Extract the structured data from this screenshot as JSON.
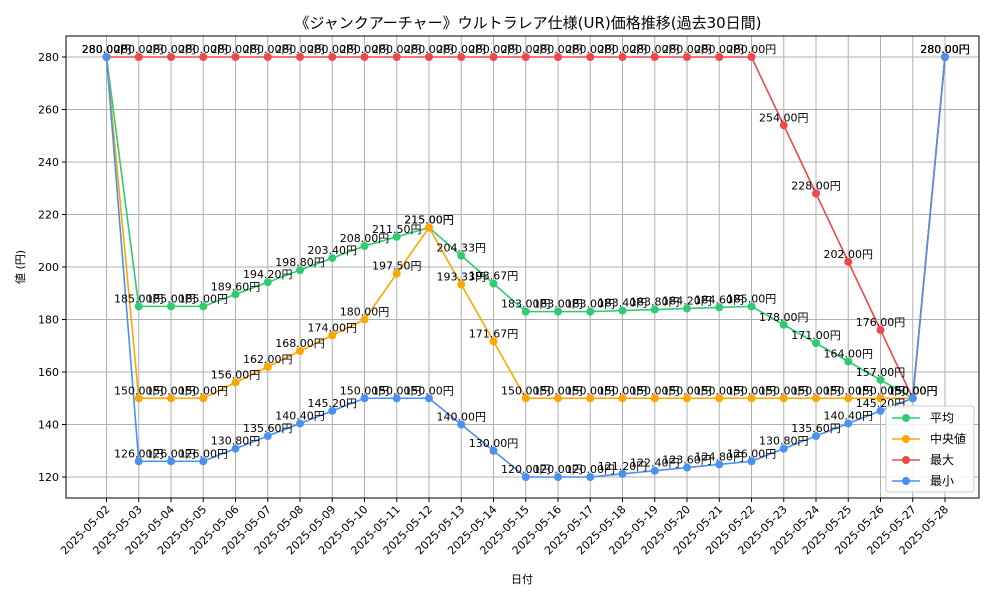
{
  "chart_data": {
    "type": "line",
    "title": "《ジャンクアーチャー》ウルトラレア仕様(UR)価格推移(過去30日間)",
    "xlabel": "日付",
    "ylabel": "値 (円)",
    "ylim": [
      112,
      288
    ],
    "yticks": [
      120,
      140,
      160,
      180,
      200,
      220,
      240,
      260,
      280
    ],
    "grid": true,
    "legend_position": "lower-right",
    "value_suffix": "円",
    "categories": [
      "2025-05-02",
      "2025-05-03",
      "2025-05-04",
      "2025-05-05",
      "2025-05-06",
      "2025-05-07",
      "2025-05-08",
      "2025-05-09",
      "2025-05-10",
      "2025-05-11",
      "2025-05-12",
      "2025-05-13",
      "2025-05-14",
      "2025-05-15",
      "2025-05-16",
      "2025-05-17",
      "2025-05-18",
      "2025-05-19",
      "2025-05-20",
      "2025-05-21",
      "2025-05-22",
      "2025-05-23",
      "2025-05-24",
      "2025-05-25",
      "2025-05-26",
      "2025-05-27",
      "2025-05-28"
    ],
    "series": [
      {
        "name": "平均",
        "color": "#2ecc71",
        "values": [
          280,
          185,
          185,
          185,
          189.6,
          194.2,
          198.8,
          203.4,
          208,
          211.5,
          215,
          204.33,
          193.67,
          183,
          183,
          183,
          183.4,
          183.8,
          184.2,
          184.6,
          185,
          178,
          171,
          164,
          157,
          150,
          280
        ]
      },
      {
        "name": "中央値",
        "color": "#ffa500",
        "values": [
          280,
          150,
          150,
          150,
          156,
          162,
          168,
          174,
          180,
          197.5,
          215,
          193.33,
          171.67,
          150,
          150,
          150,
          150,
          150,
          150,
          150,
          150,
          150,
          150,
          150,
          150,
          150,
          280
        ]
      },
      {
        "name": "最大",
        "color": "#f04848",
        "values": [
          280,
          280,
          280,
          280,
          280,
          280,
          280,
          280,
          280,
          280,
          280,
          280,
          280,
          280,
          280,
          280,
          280,
          280,
          280,
          280,
          280,
          254,
          228,
          202,
          176,
          150,
          280
        ]
      },
      {
        "name": "最小",
        "color": "#4a90f0",
        "values": [
          280,
          126,
          126,
          126,
          130.8,
          135.6,
          140.4,
          145.2,
          150,
          150,
          150,
          140,
          130,
          120,
          120,
          120,
          121.2,
          122.4,
          123.6,
          124.8,
          126,
          130.8,
          135.6,
          140.4,
          145.2,
          150,
          280
        ]
      }
    ]
  }
}
